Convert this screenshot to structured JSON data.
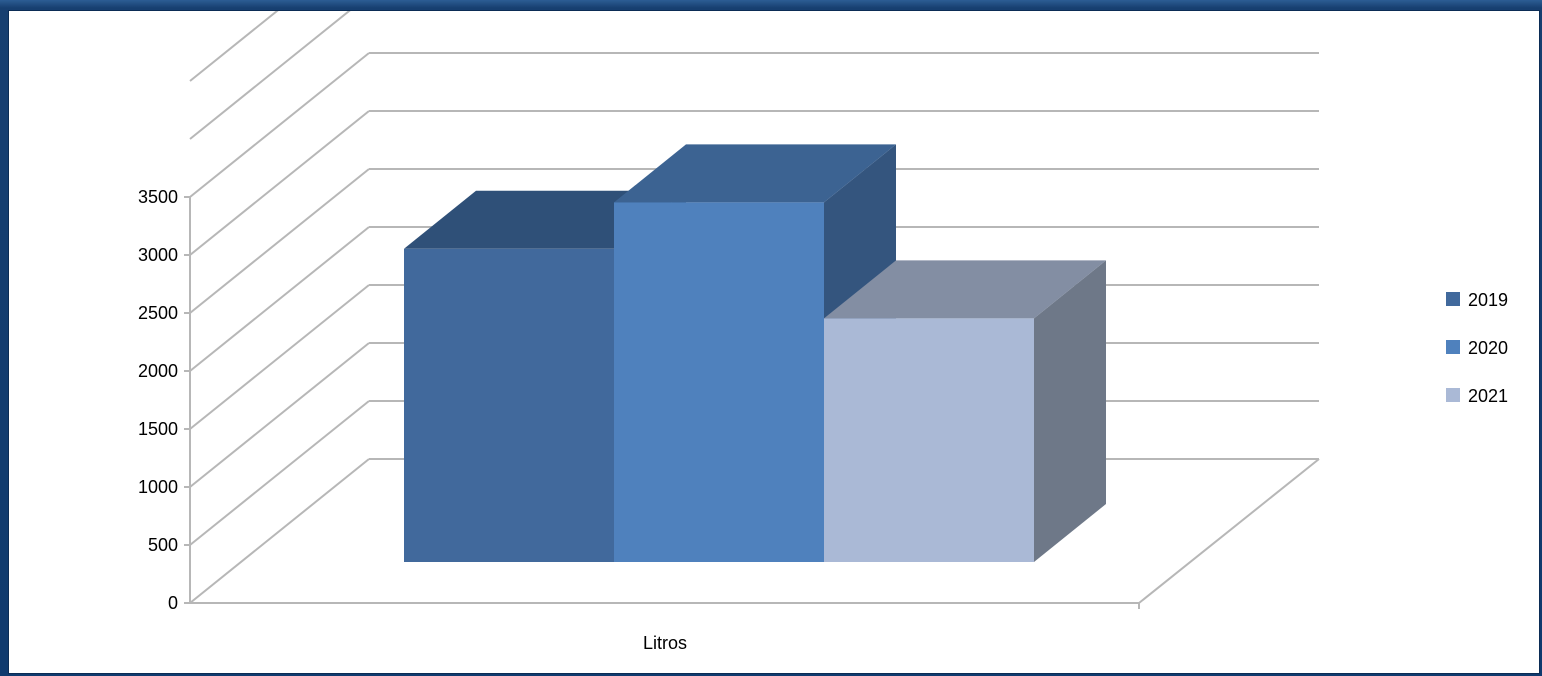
{
  "chart_data": {
    "type": "bar",
    "projection": "3d-clustered-column",
    "categories": [
      "Litros"
    ],
    "series": [
      {
        "name": "2019",
        "values": [
          2700
        ],
        "color": "#41699c",
        "top_color": "#2f5078",
        "side_color": "#2f5078"
      },
      {
        "name": "2020",
        "values": [
          3100
        ],
        "color": "#4f81bd",
        "top_color": "#3c6392",
        "side_color": "#34557e"
      },
      {
        "name": "2021",
        "values": [
          2100
        ],
        "color": "#aab9d6",
        "top_color": "#838ea3",
        "side_color": "#6e7888"
      }
    ],
    "y_ticks": [
      "0",
      "500",
      "1000",
      "1500",
      "2000",
      "2500",
      "3000",
      "3500"
    ],
    "ylim": [
      0,
      3500
    ],
    "xlabel": "",
    "ylabel": "",
    "title": "",
    "grid": true,
    "legend_position": "right",
    "gridline_color": "#b7b7b7"
  }
}
